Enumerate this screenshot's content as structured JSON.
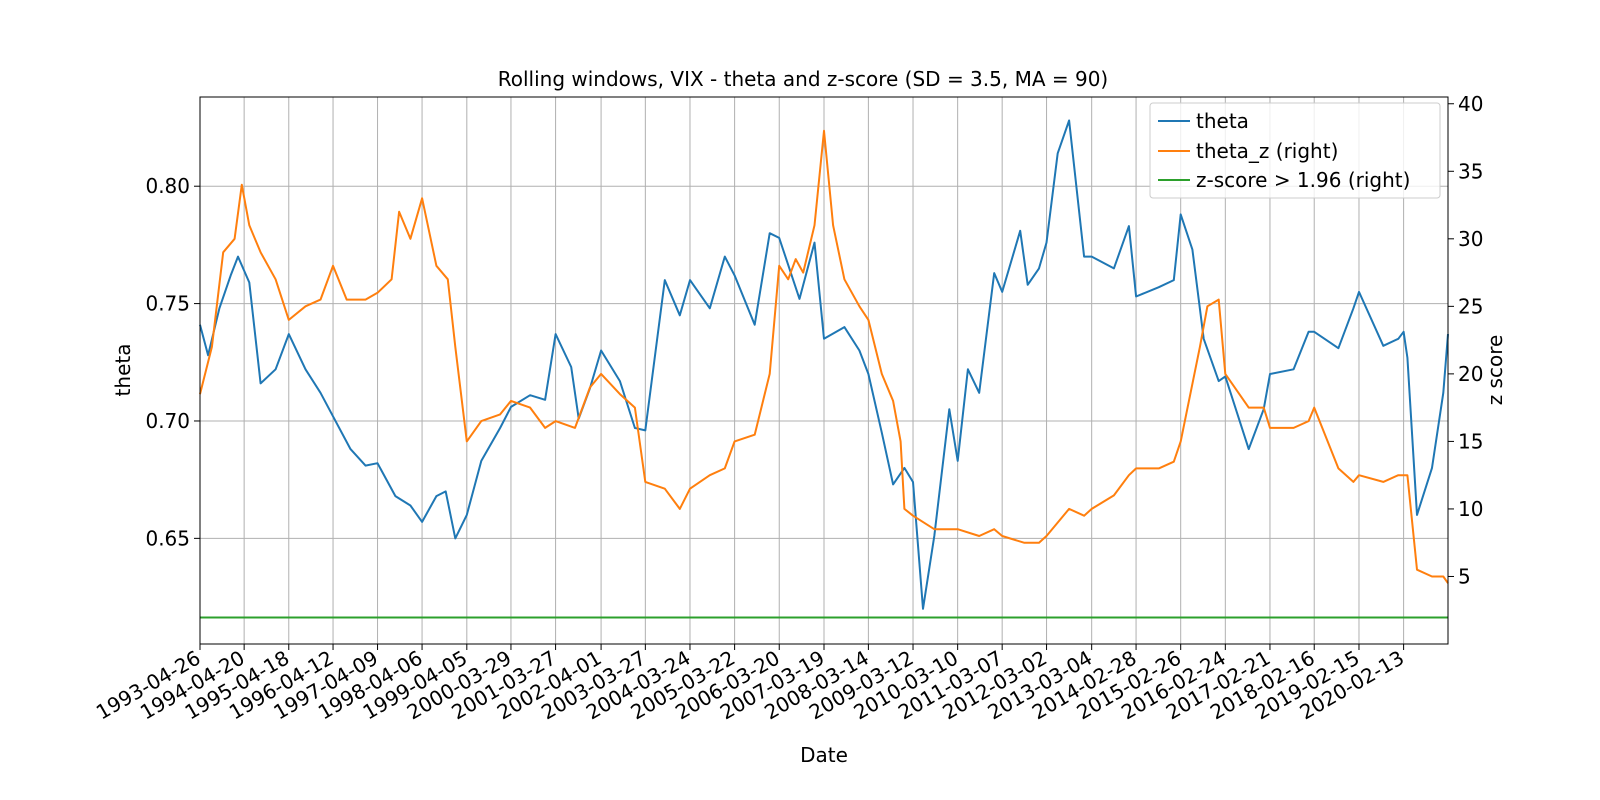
{
  "chart_data": {
    "type": "line",
    "title": "Rolling windows, VIX - theta and z-score (SD = 3.5, MA = 90)",
    "xlabel": "Date",
    "ylabel": "theta",
    "ylabel_right": "z score",
    "xlim": [
      "1993-04-26",
      "2021-02-08"
    ],
    "ylim": [
      0.605,
      0.838
    ],
    "ylim_right": [
      0,
      40.5
    ],
    "grid": true,
    "legend": "upper-right",
    "x_ticks": [
      "1993-04-26",
      "1994-04-20",
      "1995-04-18",
      "1996-04-12",
      "1997-04-09",
      "1998-04-06",
      "1999-04-05",
      "2000-03-29",
      "2001-03-27",
      "2002-04-01",
      "2003-03-27",
      "2004-03-24",
      "2005-03-22",
      "2006-03-20",
      "2007-03-19",
      "2008-03-14",
      "2009-03-12",
      "2010-03-10",
      "2011-03-07",
      "2012-03-02",
      "2013-03-04",
      "2014-02-28",
      "2015-02-26",
      "2016-02-24",
      "2017-02-21",
      "2018-02-16",
      "2019-02-15",
      "2020-02-13"
    ],
    "y_ticks": [
      "0.65",
      "0.70",
      "0.75",
      "0.80"
    ],
    "y_ticks_right": [
      "5",
      "10",
      "15",
      "20",
      "25",
      "30",
      "35",
      "40"
    ],
    "series": [
      {
        "name": "theta",
        "axis": "left",
        "color": "#1f77b4",
        "x": [
          "1993-04-26",
          "1993-07-01",
          "1993-10-01",
          "1994-01-01",
          "1994-03-01",
          "1994-06-01",
          "1994-09-01",
          "1995-01-01",
          "1995-04-18",
          "1995-09-01",
          "1996-01-01",
          "1996-04-12",
          "1996-09-01",
          "1997-01-01",
          "1997-04-09",
          "1997-09-01",
          "1998-01-01",
          "1998-04-06",
          "1998-08-01",
          "1998-10-15",
          "1999-01-01",
          "1999-04-05",
          "1999-08-01",
          "2000-01-01",
          "2000-03-29",
          "2000-09-01",
          "2001-01-01",
          "2001-03-27",
          "2001-08-01",
          "2001-10-01",
          "2002-01-01",
          "2002-04-01",
          "2002-09-01",
          "2003-01-01",
          "2003-03-27",
          "2003-09-01",
          "2004-01-01",
          "2004-03-24",
          "2004-09-01",
          "2005-01-01",
          "2005-03-22",
          "2005-09-01",
          "2006-01-01",
          "2006-03-20",
          "2006-09-01",
          "2007-01-01",
          "2007-03-19",
          "2007-09-01",
          "2008-01-01",
          "2008-03-14",
          "2008-07-01",
          "2008-10-01",
          "2009-01-01",
          "2009-03-12",
          "2009-06-01",
          "2009-09-01",
          "2010-01-01",
          "2010-03-10",
          "2010-06-01",
          "2010-09-01",
          "2011-01-01",
          "2011-03-07",
          "2011-08-01",
          "2011-10-01",
          "2012-01-01",
          "2012-03-02",
          "2012-06-01",
          "2012-09-01",
          "2013-01-01",
          "2013-03-04",
          "2013-09-01",
          "2014-01-01",
          "2014-02-28",
          "2014-09-01",
          "2015-01-01",
          "2015-02-26",
          "2015-06-01",
          "2015-09-01",
          "2016-01-01",
          "2016-02-24",
          "2016-09-01",
          "2017-01-01",
          "2017-02-21",
          "2017-09-01",
          "2018-01-01",
          "2018-02-16",
          "2018-09-01",
          "2019-01-01",
          "2019-02-15",
          "2019-09-01",
          "2020-01-01",
          "2020-02-13",
          "2020-03-15",
          "2020-06-01",
          "2020-10-01",
          "2021-01-01",
          "2021-02-08"
        ],
        "values": [
          0.741,
          0.728,
          0.748,
          0.762,
          0.77,
          0.759,
          0.716,
          0.722,
          0.737,
          0.722,
          0.712,
          0.702,
          0.688,
          0.681,
          0.682,
          0.668,
          0.664,
          0.657,
          0.668,
          0.67,
          0.65,
          0.66,
          0.683,
          0.697,
          0.706,
          0.711,
          0.709,
          0.737,
          0.723,
          0.701,
          0.714,
          0.73,
          0.717,
          0.697,
          0.696,
          0.76,
          0.745,
          0.76,
          0.748,
          0.77,
          0.762,
          0.741,
          0.78,
          0.778,
          0.752,
          0.776,
          0.735,
          0.74,
          0.73,
          0.72,
          0.695,
          0.673,
          0.68,
          0.674,
          0.62,
          0.651,
          0.705,
          0.683,
          0.722,
          0.712,
          0.763,
          0.755,
          0.781,
          0.758,
          0.765,
          0.776,
          0.814,
          0.828,
          0.77,
          0.77,
          0.765,
          0.783,
          0.753,
          0.757,
          0.76,
          0.788,
          0.773,
          0.735,
          0.717,
          0.719,
          0.688,
          0.705,
          0.72,
          0.722,
          0.738,
          0.738,
          0.731,
          0.748,
          0.755,
          0.732,
          0.735,
          0.738,
          0.727,
          0.66,
          0.68,
          0.712,
          0.737
        ]
      },
      {
        "name": "theta_z (right)",
        "axis": "right",
        "color": "#ff7f0e",
        "x": [
          "1993-04-26",
          "1993-08-01",
          "1993-11-01",
          "1994-02-01",
          "1994-04-01",
          "1994-06-01",
          "1994-09-01",
          "1995-01-01",
          "1995-04-18",
          "1995-09-01",
          "1996-01-01",
          "1996-04-12",
          "1996-08-01",
          "1997-01-01",
          "1997-04-09",
          "1997-08-01",
          "1997-10-01",
          "1998-01-01",
          "1998-04-06",
          "1998-08-01",
          "1998-11-01",
          "1999-01-01",
          "1999-04-05",
          "1999-08-01",
          "2000-01-01",
          "2000-03-29",
          "2000-09-01",
          "2001-01-01",
          "2001-03-27",
          "2001-09-01",
          "2002-01-01",
          "2002-04-01",
          "2002-09-01",
          "2003-01-01",
          "2003-03-27",
          "2003-09-01",
          "2004-01-01",
          "2004-03-24",
          "2004-09-01",
          "2005-01-01",
          "2005-03-22",
          "2005-09-01",
          "2006-01-01",
          "2006-03-20",
          "2006-06-01",
          "2006-08-01",
          "2006-10-01",
          "2007-01-01",
          "2007-03-19",
          "2007-06-01",
          "2007-09-01",
          "2008-01-01",
          "2008-03-14",
          "2008-07-01",
          "2008-10-01",
          "2008-12-01",
          "2009-01-01",
          "2009-03-12",
          "2009-09-01",
          "2010-01-01",
          "2010-03-10",
          "2010-09-01",
          "2011-01-01",
          "2011-03-07",
          "2011-09-01",
          "2012-01-01",
          "2012-03-02",
          "2012-09-01",
          "2013-01-01",
          "2013-03-04",
          "2013-09-01",
          "2014-01-01",
          "2014-02-28",
          "2014-09-01",
          "2015-01-01",
          "2015-02-26",
          "2015-08-01",
          "2015-10-01",
          "2016-01-01",
          "2016-02-24",
          "2016-09-01",
          "2017-01-01",
          "2017-02-21",
          "2017-09-01",
          "2018-01-01",
          "2018-02-16",
          "2018-09-01",
          "2019-01-01",
          "2019-02-15",
          "2019-09-01",
          "2020-01-01",
          "2020-02-13",
          "2020-03-15",
          "2020-06-01",
          "2020-10-01",
          "2021-01-01",
          "2021-02-08"
        ],
        "values": [
          18.5,
          22.0,
          29.0,
          30.0,
          34.0,
          31.0,
          29.0,
          27.0,
          24.0,
          25.0,
          25.5,
          28.0,
          25.5,
          25.5,
          26.0,
          27.0,
          32.0,
          30.0,
          33.0,
          28.0,
          27.0,
          22.0,
          15.0,
          16.5,
          17.0,
          18.0,
          17.5,
          16.0,
          16.5,
          16.0,
          19.0,
          20.0,
          18.5,
          17.5,
          12.0,
          11.5,
          10.0,
          11.5,
          12.5,
          13.0,
          15.0,
          15.5,
          20.0,
          28.0,
          27.0,
          28.5,
          27.5,
          31.0,
          38.0,
          31.0,
          27.0,
          25.0,
          24.0,
          20.0,
          18.0,
          15.0,
          10.0,
          9.5,
          8.5,
          8.5,
          8.5,
          8.0,
          8.5,
          8.0,
          7.5,
          7.5,
          8.0,
          10.0,
          9.5,
          10.0,
          11.0,
          12.5,
          13.0,
          13.0,
          13.5,
          15.0,
          22.0,
          25.0,
          25.5,
          20.0,
          17.5,
          17.5,
          16.0,
          16.0,
          16.5,
          17.5,
          13.0,
          12.0,
          12.5,
          12.0,
          12.5,
          12.5,
          12.5,
          5.5,
          5.0,
          5.0,
          4.5
        ]
      },
      {
        "name": "z-score > 1.96 (right)",
        "axis": "right",
        "color": "#2ca02c",
        "x": [
          "1993-04-26",
          "2021-02-08"
        ],
        "values": [
          1.96,
          1.96
        ]
      }
    ]
  }
}
